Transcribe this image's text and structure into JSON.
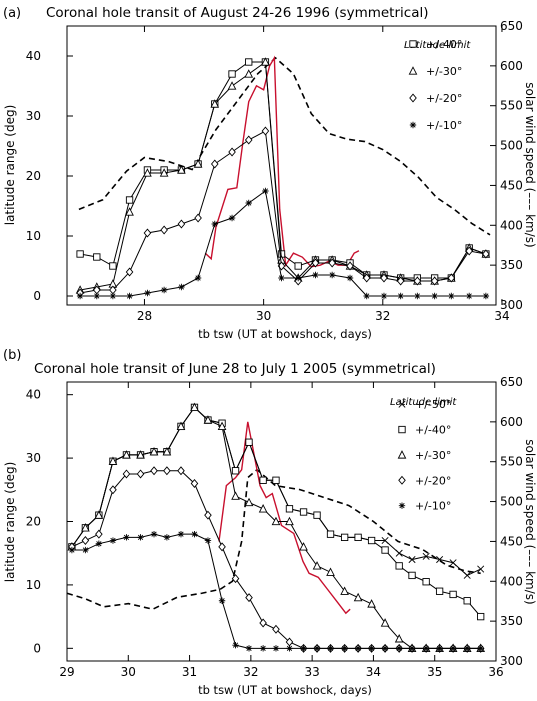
{
  "chart_data": [
    {
      "panel_label": "(a)",
      "type": "line",
      "title": "Coronal hole transit of August 24-26 1996 (symmetrical)",
      "xlabel": "tb tsw (UT at bowshock, days)",
      "ylabel": "latitude range (deg)",
      "y2label": "solar wind speed (––– km/s)",
      "xlim": [
        26.7,
        33.9
      ],
      "ylim": [
        -1.5,
        45
      ],
      "y2lim": [
        300,
        650
      ],
      "xticks": [
        28,
        30,
        32,
        34
      ],
      "yticks": [
        0,
        10,
        20,
        30,
        40
      ],
      "y2ticks": [
        300,
        350,
        400,
        450,
        500,
        550,
        600,
        650
      ],
      "legend_title": "Latitude limit",
      "legend_position": "right",
      "series": [
        {
          "name": "+/-40°",
          "marker": "square",
          "x": [
            26.92,
            27.2,
            27.47,
            27.75,
            28.05,
            28.33,
            28.62,
            28.9,
            29.18,
            29.47,
            29.75,
            30.03,
            30.3,
            30.58,
            30.87,
            31.15,
            31.45,
            31.73,
            32.02,
            32.3,
            32.58,
            32.87,
            33.15,
            33.45,
            33.73
          ],
          "values": [
            7,
            6.5,
            5,
            16,
            21,
            21,
            21,
            22,
            32,
            37,
            39,
            39,
            7,
            5,
            6,
            6,
            5.5,
            3.5,
            3.5,
            3,
            3,
            3,
            3,
            8,
            7
          ]
        },
        {
          "name": "+/-30°",
          "marker": "triangle",
          "x": [
            26.92,
            27.2,
            27.47,
            27.75,
            28.05,
            28.33,
            28.62,
            28.9,
            29.18,
            29.47,
            29.75,
            30.03,
            30.3,
            30.58,
            30.87,
            31.15,
            31.45,
            31.73,
            32.02,
            32.3,
            32.58,
            32.87,
            33.15,
            33.45,
            33.73
          ],
          "values": [
            1,
            1.5,
            2,
            14,
            20.5,
            20.5,
            21,
            22,
            32,
            35,
            37,
            39,
            6,
            3,
            6,
            6,
            5,
            3.5,
            3.5,
            3,
            2.5,
            2.5,
            3,
            8,
            7
          ]
        },
        {
          "name": "+/-20°",
          "marker": "diamond",
          "x": [
            26.92,
            27.2,
            27.47,
            27.75,
            28.05,
            28.33,
            28.62,
            28.9,
            29.18,
            29.47,
            29.75,
            30.03,
            30.3,
            30.58,
            30.87,
            31.15,
            31.45,
            31.73,
            32.02,
            32.3,
            32.58,
            32.87,
            33.15,
            33.45,
            33.73
          ],
          "values": [
            0.5,
            1,
            1,
            4,
            10.5,
            11,
            12,
            13,
            22,
            24,
            26,
            27.5,
            5,
            2.5,
            5.5,
            5.5,
            5,
            3,
            3,
            2.5,
            2.5,
            2.5,
            3,
            7.5,
            7
          ]
        },
        {
          "name": "+/-10°",
          "marker": "asterisk",
          "x": [
            26.92,
            27.2,
            27.47,
            27.75,
            28.05,
            28.33,
            28.62,
            28.9,
            29.18,
            29.47,
            29.75,
            30.03,
            30.3,
            30.58,
            30.87,
            31.15,
            31.45,
            31.73,
            32.02,
            32.3,
            32.58,
            32.87,
            33.15,
            33.45,
            33.73
          ],
          "values": [
            0,
            0,
            0,
            0,
            0.5,
            1,
            1.5,
            3,
            12,
            13,
            15.5,
            17.5,
            3,
            3,
            3.5,
            3.5,
            3,
            0,
            0,
            0,
            0,
            0,
            0,
            0,
            0
          ]
        }
      ],
      "solar_wind_speed": {
        "dashed": {
          "x": [
            26.9,
            27.3,
            27.7,
            28.0,
            28.4,
            28.8,
            29.2,
            29.6,
            29.9,
            30.2,
            30.5,
            30.8,
            31.1,
            31.4,
            31.7,
            32.0,
            32.3,
            32.6,
            32.9,
            33.2,
            33.5,
            33.8
          ],
          "values": [
            420,
            432,
            468,
            485,
            480,
            470,
            520,
            560,
            590,
            610,
            590,
            540,
            515,
            508,
            505,
            495,
            480,
            460,
            435,
            420,
            402,
            388
          ]
        },
        "red": {
          "x": [
            29.02,
            29.12,
            29.2,
            29.4,
            29.55,
            29.65,
            29.75,
            29.88,
            30.0,
            30.1,
            30.18,
            30.27,
            30.37,
            30.5,
            30.65,
            30.8,
            30.95,
            31.1,
            31.25,
            31.4,
            31.52,
            31.6
          ],
          "values": [
            365,
            358,
            398,
            445,
            447,
            503,
            555,
            575,
            570,
            600,
            610,
            420,
            350,
            365,
            360,
            348,
            350,
            355,
            350,
            350,
            365,
            368
          ]
        }
      },
      "legend_markers_y": [
        42,
        37.5,
        33,
        28.5
      ]
    },
    {
      "panel_label": "(b)",
      "type": "line",
      "title": "Coronal hole transit of June 28 to July 1 2005 (symmetrical)",
      "xlabel": "tb tsw (UT at bowshock, days)",
      "ylabel": "latitude range (deg)",
      "y2label": "solar wind speed (––– km/s)",
      "xlim": [
        29,
        36
      ],
      "ylim": [
        -2,
        42
      ],
      "y2lim": [
        300,
        650
      ],
      "xticks": [
        29,
        30,
        31,
        32,
        33,
        34,
        35,
        36
      ],
      "yticks": [
        0,
        10,
        20,
        30,
        40
      ],
      "y2ticks": [
        300,
        350,
        400,
        450,
        500,
        550,
        600,
        650
      ],
      "legend_title": "Latitude limit",
      "legend_position": "right",
      "series": [
        {
          "name": "+/-50°",
          "marker": "cross",
          "x": [
            29.08,
            29.3,
            29.52,
            29.75,
            29.97,
            30.2,
            30.42,
            30.63,
            30.86,
            31.08,
            31.3,
            31.53,
            31.75,
            31.97,
            32.2,
            32.41,
            32.63,
            32.86,
            33.08,
            33.3,
            33.53,
            33.75,
            33.97,
            34.19,
            34.42,
            34.63,
            34.86,
            35.08,
            35.3,
            35.53,
            35.75
          ],
          "values": [
            16,
            19,
            21,
            29.5,
            30.5,
            30.5,
            31,
            31,
            35,
            38,
            36,
            35.5,
            28,
            32.5,
            26.5,
            26.5,
            22,
            21.5,
            21,
            18,
            17.5,
            17.5,
            17,
            17,
            15,
            14,
            14.5,
            14,
            13.5,
            11.5,
            12.5
          ]
        },
        {
          "name": "+/-40°",
          "marker": "square",
          "x": [
            29.08,
            29.3,
            29.52,
            29.75,
            29.97,
            30.2,
            30.42,
            30.63,
            30.86,
            31.08,
            31.3,
            31.53,
            31.75,
            31.97,
            32.2,
            32.41,
            32.63,
            32.86,
            33.08,
            33.3,
            33.53,
            33.75,
            33.97,
            34.19,
            34.42,
            34.63,
            34.86,
            35.08,
            35.3,
            35.53,
            35.75
          ],
          "values": [
            16,
            19,
            21,
            29.5,
            30.5,
            30.5,
            31,
            31,
            35,
            38,
            36,
            35.5,
            28,
            32.5,
            26.5,
            26.5,
            22,
            21.5,
            21,
            18,
            17.5,
            17.5,
            17,
            15.5,
            13,
            11.5,
            10.5,
            9,
            8.5,
            7.5,
            5
          ]
        },
        {
          "name": "+/-30°",
          "marker": "triangle",
          "x": [
            29.08,
            29.3,
            29.52,
            29.75,
            29.97,
            30.2,
            30.42,
            30.63,
            30.86,
            31.08,
            31.3,
            31.53,
            31.75,
            31.97,
            32.2,
            32.41,
            32.63,
            32.86,
            33.08,
            33.3,
            33.53,
            33.75,
            33.97,
            34.19,
            34.42,
            34.63,
            34.86,
            35.08,
            35.3,
            35.53,
            35.75
          ],
          "values": [
            16,
            19,
            21,
            29.5,
            30.5,
            30.5,
            31,
            31,
            35,
            38,
            36,
            35,
            24,
            23,
            22,
            20,
            20,
            16,
            13,
            12,
            9,
            8,
            7,
            4,
            1.5,
            0,
            0,
            0,
            0,
            0,
            0
          ]
        },
        {
          "name": "+/-20°",
          "marker": "diamond",
          "x": [
            29.08,
            29.3,
            29.52,
            29.75,
            29.97,
            30.2,
            30.42,
            30.63,
            30.86,
            31.08,
            31.3,
            31.53,
            31.75,
            31.97,
            32.2,
            32.41,
            32.63,
            32.86,
            33.08,
            33.3,
            33.53,
            33.75,
            33.97,
            34.19,
            34.42,
            34.63,
            34.86,
            35.08,
            35.3,
            35.53,
            35.75
          ],
          "values": [
            16,
            17,
            18,
            25,
            27.5,
            27.5,
            28,
            28,
            28,
            26,
            21,
            16,
            11,
            8,
            4,
            3,
            1,
            0,
            0,
            0,
            0,
            0,
            0,
            0,
            0,
            0,
            0,
            0,
            0,
            0,
            0
          ]
        },
        {
          "name": "+/-10°",
          "marker": "asterisk",
          "x": [
            29.08,
            29.3,
            29.52,
            29.75,
            29.97,
            30.2,
            30.42,
            30.63,
            30.86,
            31.08,
            31.3,
            31.53,
            31.75,
            31.97,
            32.2,
            32.41,
            32.63,
            32.86,
            33.08,
            33.3,
            33.53,
            33.75,
            33.97,
            34.19,
            34.42,
            34.63,
            34.86,
            35.08,
            35.3,
            35.53,
            35.75
          ],
          "values": [
            15.5,
            15.5,
            16.5,
            17,
            17.5,
            17.5,
            18,
            17.5,
            18,
            18,
            17,
            7.5,
            0.5,
            0,
            0,
            0,
            0,
            0,
            0,
            0,
            0,
            0,
            0,
            0,
            0,
            0,
            0,
            0,
            0,
            0,
            0
          ]
        }
      ],
      "solar_wind_speed": {
        "dashed": {
          "x": [
            29.0,
            29.3,
            29.6,
            30.0,
            30.4,
            30.8,
            31.2,
            31.5,
            31.7,
            31.85,
            31.95,
            32.1,
            32.4,
            32.8,
            33.2,
            33.6,
            34.0,
            34.4,
            34.8,
            35.2,
            35.5,
            35.75
          ],
          "values": [
            385,
            378,
            368,
            372,
            365,
            380,
            385,
            390,
            400,
            450,
            530,
            540,
            520,
            515,
            505,
            495,
            475,
            450,
            440,
            420,
            413,
            410
          ]
        },
        "red": {
          "x": [
            31.48,
            31.6,
            31.75,
            31.85,
            31.95,
            32.05,
            32.15,
            32.25,
            32.35,
            32.5,
            32.7,
            32.85,
            32.95,
            33.1,
            33.25,
            33.4,
            33.55,
            33.62
          ],
          "values": [
            450,
            520,
            530,
            540,
            600,
            560,
            520,
            505,
            510,
            470,
            460,
            425,
            410,
            405,
            390,
            375,
            360,
            365
          ]
        }
      },
      "legend_markers_y": [
        38.5,
        34.5,
        30.5,
        26.5,
        22.5
      ]
    }
  ]
}
